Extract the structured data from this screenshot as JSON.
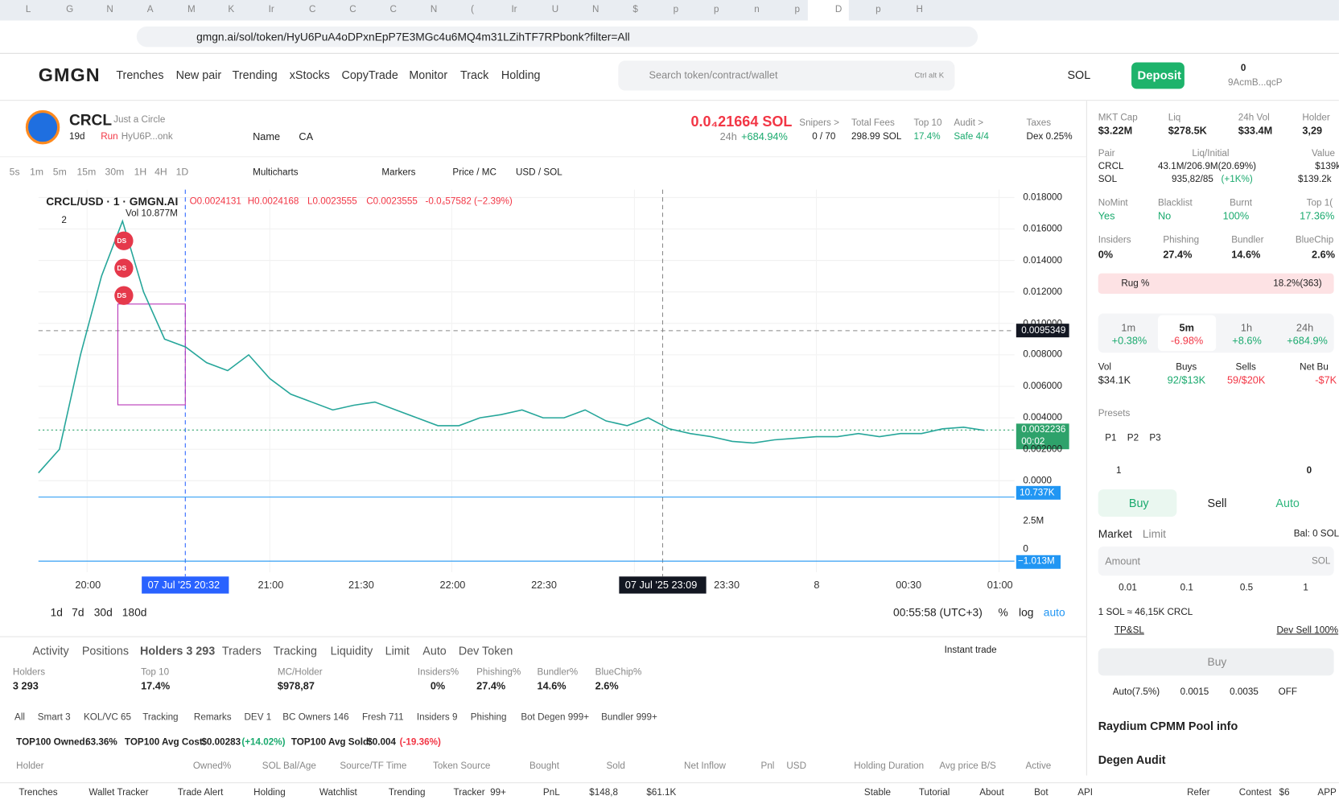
{
  "browser": {
    "tabs": [
      "L",
      "G",
      "N",
      "A",
      "M",
      "K",
      "Ir",
      "C",
      "C",
      "C",
      "N",
      "(",
      "Ir",
      "U",
      "N",
      "$",
      "p",
      "p",
      "n",
      "p",
      "D",
      "p",
      "H"
    ],
    "url": "gmgn.ai/sol/token/HyU6PuA4oDPxnEpP7E3MGc4u6MQ4m31LZihTF7RPbonk?filter=All"
  },
  "nav": {
    "logo": "GMGN",
    "items": [
      "Trenches",
      "New pair",
      "Trending",
      "xStocks",
      "CopyTrade",
      "Monitor",
      "Track",
      "Holding"
    ],
    "search": "Search token/contract/wallet",
    "shortcut": "Ctrl alt K",
    "chain": "SOL",
    "deposit": "Deposit",
    "wallet_balance": "0",
    "wallet": "9AcmB...qcP"
  },
  "token": {
    "symbol": "CRCL",
    "name": "Just a Circle",
    "age": "19d",
    "run": "Run",
    "address": "HyU6P...onk",
    "name_button": "Name",
    "ca_button": "CA",
    "price": "0.0₄21664 SOL",
    "change_label": "24h",
    "change": "+684.94%",
    "stats": [
      {
        "label": "Snipers >",
        "value": "0 / 70"
      },
      {
        "label": "Total Fees",
        "value": "298.99 SOL"
      },
      {
        "label": "Top 10",
        "value": "17.4%"
      },
      {
        "label": "Audit >",
        "value": "Safe 4/4"
      },
      {
        "label": "Taxes",
        "value": "Dex 0.25%"
      }
    ]
  },
  "toolbar": {
    "intervals": [
      "5s",
      "1m",
      "5m",
      "15m",
      "30m",
      "1H",
      "4H",
      "1D"
    ],
    "multicharts": "Multicharts",
    "markers": "Markers",
    "price_mc": "Price / MC",
    "usd_sol": "USD / SOL"
  },
  "chart": {
    "type": "line",
    "legend": {
      "pair": "CRCL/USD · 1 · GMGN.AI",
      "open": "O0.0024131",
      "high": "H0.0024168",
      "low": "L0.0023555",
      "close": "C0.0023555",
      "change": "-0.0₄57582 (−2.39%)",
      "volume": "Vol 10.877M",
      "count": "2"
    },
    "ylim": [
      -0.0012,
      0.0185
    ],
    "yticks": [
      {
        "value": 0,
        "label": "0.0000"
      },
      {
        "value": 0.002,
        "label": "0.002000"
      },
      {
        "value": 0.004,
        "label": "0.004000"
      },
      {
        "value": 0.006,
        "label": "0.006000"
      },
      {
        "value": 0.008,
        "label": "0.008000"
      },
      {
        "value": 0.01,
        "label": "0.010000"
      },
      {
        "value": 0.012,
        "label": "0.012000"
      },
      {
        "value": 0.014,
        "label": "0.014000"
      },
      {
        "value": 0.016,
        "label": "0.016000"
      },
      {
        "value": 0.018,
        "label": "0.018000"
      }
    ],
    "grid": true,
    "series": [
      {
        "name": "CRCL/USD",
        "color": "#26a69a",
        "values": [
          0.0005,
          0.002,
          0.008,
          0.013,
          0.0165,
          0.012,
          0.009,
          0.0085,
          0.0075,
          0.007,
          0.008,
          0.0065,
          0.0055,
          0.005,
          0.0045,
          0.0048,
          0.005,
          0.0045,
          0.004,
          0.0035,
          0.0035,
          0.004,
          0.0042,
          0.0045,
          0.004,
          0.004,
          0.0045,
          0.0038,
          0.0035,
          0.004,
          0.0033,
          0.003,
          0.0028,
          0.0025,
          0.0024,
          0.0026,
          0.0027,
          0.0028,
          0.0028,
          0.003,
          0.0028,
          0.003,
          0.003,
          0.0033,
          0.0034,
          0.0032
        ]
      }
    ],
    "crosshair": 0.0095349,
    "last_price": 0.0032236,
    "countdown": "00:02",
    "markers": [
      "DS",
      "DS",
      "DS"
    ],
    "volume_label": "10.737K",
    "indicator_labels": [
      "2.5M",
      "0"
    ],
    "indicator_value": "−1.013M",
    "xlabels": [
      "20:00",
      "21:00",
      "21:30",
      "22:00",
      "22:30",
      "23:30",
      "8",
      "00:30",
      "01:00"
    ],
    "x_highlight": "07 Jul '25   20:32",
    "x_cursor": "07 Jul '25   23:09",
    "ranges": [
      "1d",
      "7d",
      "30d",
      "180d"
    ],
    "clock": "00:55:58 (UTC+3)",
    "percent": "%",
    "log": "log",
    "auto": "auto"
  },
  "bottom": {
    "tabs": [
      "Activity",
      "Positions",
      "Holders 3 293",
      "Traders",
      "Tracking",
      "Liquidity",
      "Limit",
      "Auto",
      "Dev Token"
    ],
    "instant_trade": "Instant trade",
    "stats": [
      {
        "label": "Holders",
        "value": "3 293"
      },
      {
        "label": "Top 10",
        "value": "17.4%"
      },
      {
        "label": "MC/Holder",
        "value": "$978,87"
      },
      {
        "label": "Insiders%",
        "value": "0%"
      },
      {
        "label": "Phishing%",
        "value": "27.4%"
      },
      {
        "label": "Bundler%",
        "value": "14.6%"
      },
      {
        "label": "BlueChip%",
        "value": "2.6%"
      }
    ],
    "filters": [
      "All",
      "Smart 3",
      "KOL/VC 65",
      "Tracking",
      "Remarks",
      "DEV 1",
      "BC Owners 146",
      "Fresh 711",
      "Insiders 9",
      "Phishing",
      "Bot Degen 999+",
      "Bundler 999+"
    ],
    "summary": [
      "TOP100 Owned:",
      "63.36%",
      "TOP100 Avg Cost:",
      "$0.00283",
      "(+14.02%)",
      "TOP100 Avg Sold:",
      "$0.004",
      "(-19.36%)"
    ],
    "columns": [
      "Holder",
      "Owned%",
      "SOL Bal/Age",
      "Source/TF Time",
      "Token Source",
      "Bought",
      "Sold",
      "Net Inflow",
      "Pnl",
      "USD",
      "Holding Duration",
      "Avg price B/S",
      "Active"
    ]
  },
  "footer": [
    "Trenches",
    "Wallet Tracker",
    "Trade Alert",
    "Holding",
    "Watchlist",
    "Trending",
    "Tracker",
    "99+",
    "PnL",
    "$148,8",
    "$61.1K",
    "Stable",
    "Tutorial",
    "About",
    "Bot",
    "API",
    "Refer",
    "Contest",
    "$6",
    "APP"
  ],
  "panel": {
    "metrics": [
      {
        "label": "MKT Cap",
        "value": "$3.22M"
      },
      {
        "label": "Liq",
        "value": "$278.5K"
      },
      {
        "label": "24h Vol",
        "value": "$33.4M"
      },
      {
        "label": "Holder",
        "value": "3,29"
      }
    ],
    "pair": {
      "label": "Pair",
      "liq_label": "Liq/Initial",
      "value_label": "Value",
      "rows": [
        [
          "CRCL",
          "43.1M/206.9M(20.69%)",
          "$139k"
        ],
        [
          "SOL",
          "935,82/85",
          "(+1K%)",
          "$139.2k"
        ]
      ]
    },
    "audit": [
      {
        "label": "NoMint",
        "value": "Yes"
      },
      {
        "label": "Blacklist",
        "value": "No"
      },
      {
        "label": "Burnt",
        "value": "100%"
      },
      {
        "label": "Top 1(",
        "value": "17.36%"
      }
    ],
    "holders": [
      {
        "label": "Insiders",
        "value": "0%"
      },
      {
        "label": "Phishing",
        "value": "27.4%"
      },
      {
        "label": "Bundler",
        "value": "14.6%"
      },
      {
        "label": "BlueChip",
        "value": "2.6%"
      }
    ],
    "rug": {
      "label": "Rug %",
      "value": "18.2%(363)"
    },
    "timeframes": [
      {
        "label": "1m",
        "value": "+0.38%"
      },
      {
        "label": "5m",
        "value": "-6.98%"
      },
      {
        "label": "1h",
        "value": "+8.6%"
      },
      {
        "label": "24h",
        "value": "+684.9%"
      }
    ],
    "flow": [
      {
        "label": "Vol",
        "value": "$34.1K"
      },
      {
        "label": "Buys",
        "value": "92/$13K"
      },
      {
        "label": "Sells",
        "value": "59/$20K"
      },
      {
        "label": "Net Bu",
        "value": "-$7K"
      }
    ],
    "presets_label": "Presets",
    "presets": [
      "P1",
      "P2",
      "P3"
    ],
    "wallet_count": "1",
    "position": "0",
    "sides": [
      "Buy",
      "Sell",
      "Auto"
    ],
    "order_types": [
      "Market",
      "Limit"
    ],
    "balance": "Bal: 0 SOL",
    "amount": "Amount",
    "amount_unit": "SOL",
    "quick": [
      "0.01",
      "0.1",
      "0.5",
      "1"
    ],
    "rate": "1 SOL ≈ 46,15K CRCL",
    "tpsl": "TP&SL",
    "dev_sell": "Dev Sell 100%",
    "buy_button": "Buy",
    "settings": [
      "Auto(7.5%)",
      "0.0015",
      "0.0035",
      "OFF"
    ],
    "pool": "Raydium CPMM Pool info",
    "degen": "Degen Audit"
  }
}
